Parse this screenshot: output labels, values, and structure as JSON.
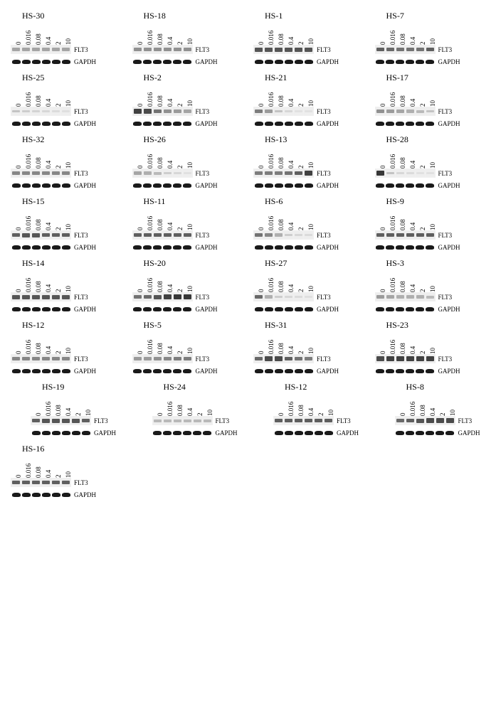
{
  "doses": [
    "0",
    "0.016",
    "0.08",
    "0.4",
    "2",
    "10"
  ],
  "labels": {
    "flt3": "FLT3",
    "gapdh": "GAPDH"
  },
  "layout": {
    "cols": 4,
    "panel_bg": "#ffffff",
    "band_dark": "#2a2a2a",
    "band_light": "#cccccc",
    "lane_bg": "#ebebeb"
  },
  "panels": [
    {
      "id": "HS-30",
      "flt3_intensity": [
        0.35,
        0.35,
        0.35,
        0.35,
        0.35,
        0.35
      ]
    },
    {
      "id": "HS-18",
      "flt3_intensity": [
        0.45,
        0.45,
        0.45,
        0.45,
        0.45,
        0.45
      ]
    },
    {
      "id": "HS-1",
      "flt3_intensity": [
        0.75,
        0.75,
        0.75,
        0.75,
        0.75,
        0.75
      ]
    },
    {
      "id": "HS-7",
      "flt3_intensity": [
        0.7,
        0.65,
        0.6,
        0.6,
        0.6,
        0.7
      ]
    },
    {
      "id": "HS-25",
      "flt3_intensity": [
        0.2,
        0.15,
        0.12,
        0.1,
        0.08,
        0.06
      ]
    },
    {
      "id": "HS-2",
      "flt3_intensity": [
        0.85,
        0.8,
        0.6,
        0.45,
        0.4,
        0.35
      ]
    },
    {
      "id": "HS-21",
      "flt3_intensity": [
        0.55,
        0.4,
        0.2,
        0.1,
        0.05,
        0.05
      ]
    },
    {
      "id": "HS-17",
      "flt3_intensity": [
        0.45,
        0.4,
        0.35,
        0.3,
        0.25,
        0.2
      ]
    },
    {
      "id": "HS-32",
      "flt3_intensity": [
        0.5,
        0.5,
        0.5,
        0.5,
        0.5,
        0.5
      ]
    },
    {
      "id": "HS-26",
      "flt3_intensity": [
        0.35,
        0.3,
        0.25,
        0.15,
        0.1,
        0.05
      ]
    },
    {
      "id": "HS-13",
      "flt3_intensity": [
        0.55,
        0.55,
        0.55,
        0.6,
        0.7,
        0.85
      ]
    },
    {
      "id": "HS-28",
      "flt3_intensity": [
        0.9,
        0.2,
        0.1,
        0.08,
        0.05,
        0.05
      ]
    },
    {
      "id": "HS-15",
      "flt3_intensity": [
        0.7,
        0.75,
        0.75,
        0.7,
        0.7,
        0.7
      ]
    },
    {
      "id": "HS-11",
      "flt3_intensity": [
        0.7,
        0.7,
        0.7,
        0.7,
        0.7,
        0.7
      ]
    },
    {
      "id": "HS-6",
      "flt3_intensity": [
        0.6,
        0.5,
        0.3,
        0.15,
        0.1,
        0.08
      ]
    },
    {
      "id": "HS-9",
      "flt3_intensity": [
        0.7,
        0.7,
        0.7,
        0.7,
        0.7,
        0.7
      ]
    },
    {
      "id": "HS-14",
      "flt3_intensity": [
        0.75,
        0.75,
        0.75,
        0.75,
        0.75,
        0.75
      ]
    },
    {
      "id": "HS-20",
      "flt3_intensity": [
        0.6,
        0.65,
        0.75,
        0.85,
        0.9,
        0.9
      ]
    },
    {
      "id": "HS-27",
      "flt3_intensity": [
        0.65,
        0.3,
        0.15,
        0.1,
        0.08,
        0.06
      ]
    },
    {
      "id": "HS-3",
      "flt3_intensity": [
        0.4,
        0.35,
        0.3,
        0.3,
        0.3,
        0.25
      ]
    },
    {
      "id": "HS-12",
      "flt3_intensity": [
        0.5,
        0.5,
        0.5,
        0.5,
        0.5,
        0.5
      ]
    },
    {
      "id": "HS-5",
      "flt3_intensity": [
        0.4,
        0.4,
        0.45,
        0.5,
        0.55,
        0.55
      ]
    },
    {
      "id": "HS-31",
      "flt3_intensity": [
        0.65,
        0.8,
        0.8,
        0.7,
        0.6,
        0.55
      ]
    },
    {
      "id": "HS-23",
      "flt3_intensity": [
        0.8,
        0.85,
        0.85,
        0.85,
        0.85,
        0.85
      ]
    },
    {
      "id": "HS-19",
      "flt3_intensity": [
        0.7,
        0.75,
        0.75,
        0.75,
        0.75,
        0.7
      ]
    },
    {
      "id": "HS-24",
      "flt3_intensity": [
        0.25,
        0.25,
        0.25,
        0.25,
        0.25,
        0.25
      ]
    },
    {
      "id": "HS-12",
      "flt3_intensity": [
        0.7,
        0.7,
        0.7,
        0.7,
        0.7,
        0.7
      ]
    },
    {
      "id": "HS-8",
      "flt3_intensity": [
        0.65,
        0.7,
        0.75,
        0.8,
        0.8,
        0.8
      ]
    },
    {
      "id": "HS-16",
      "flt3_intensity": [
        0.7,
        0.7,
        0.7,
        0.7,
        0.7,
        0.7
      ]
    }
  ]
}
